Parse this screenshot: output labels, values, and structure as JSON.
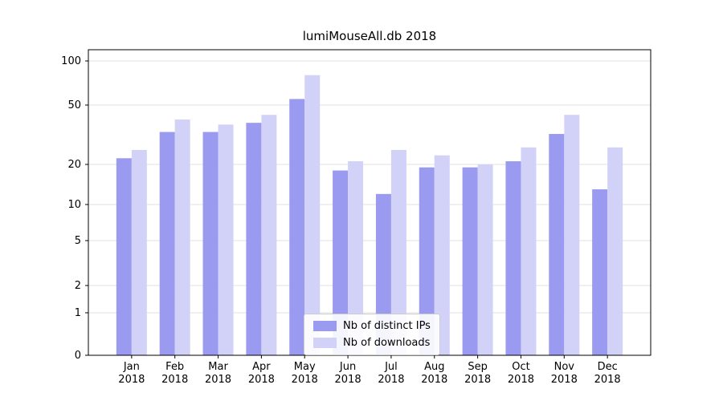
{
  "chart_data": {
    "type": "bar",
    "title": "lumiMouseAll.db 2018",
    "categories": [
      "Jan",
      "Feb",
      "Mar",
      "Apr",
      "May",
      "Jun",
      "Jul",
      "Aug",
      "Sep",
      "Oct",
      "Nov",
      "Dec"
    ],
    "year": "2018",
    "series": [
      {
        "name": "Nb of distinct IPs",
        "color": "#9a9af0",
        "values": [
          22,
          33,
          33,
          38,
          55,
          18,
          12,
          19,
          19,
          21,
          32,
          13
        ]
      },
      {
        "name": "Nb of downloads",
        "color": "#d2d2f8",
        "values": [
          25,
          40,
          37,
          43,
          80,
          21,
          25,
          23,
          20,
          26,
          43,
          26
        ]
      }
    ],
    "yscale": "symlog",
    "yticks": [
      0,
      1,
      2,
      5,
      10,
      20,
      50,
      100
    ],
    "ylim": [
      0,
      120
    ],
    "grid": true,
    "grid_color": "#e0e0e0",
    "axis_color": "#000000",
    "legend_position": "lower center",
    "xlabel": "",
    "ylabel": ""
  }
}
